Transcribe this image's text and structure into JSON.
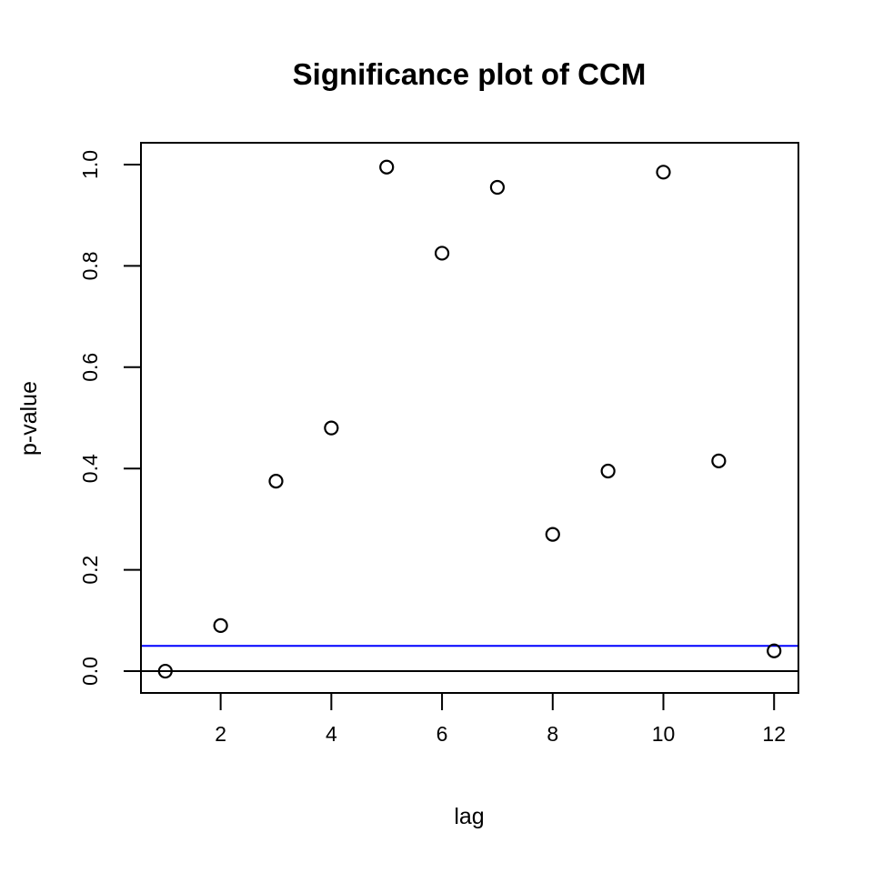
{
  "title": "Significance plot of CCM",
  "chart_data": {
    "type": "scatter",
    "title": "Significance plot of CCM",
    "xlabel": "lag",
    "ylabel": "p-value",
    "marker": "open-circle",
    "point_color": "#000000",
    "grid": false,
    "legend": null,
    "xlim": [
      0.56,
      12.44
    ],
    "ylim": [
      -0.043,
      1.043
    ],
    "xticks": [
      {
        "value": 2,
        "label": "2"
      },
      {
        "value": 4,
        "label": "4"
      },
      {
        "value": 6,
        "label": "6"
      },
      {
        "value": 8,
        "label": "8"
      },
      {
        "value": 10,
        "label": "10"
      },
      {
        "value": 12,
        "label": "12"
      }
    ],
    "yticks": [
      {
        "value": 0.0,
        "label": "0.0"
      },
      {
        "value": 0.2,
        "label": "0.2"
      },
      {
        "value": 0.4,
        "label": "0.4"
      },
      {
        "value": 0.6,
        "label": "0.6"
      },
      {
        "value": 0.8,
        "label": "0.8"
      },
      {
        "value": 1.0,
        "label": "1.0"
      }
    ],
    "points": [
      {
        "lag": 1,
        "p": 0.0
      },
      {
        "lag": 2,
        "p": 0.09
      },
      {
        "lag": 3,
        "p": 0.375
      },
      {
        "lag": 4,
        "p": 0.48
      },
      {
        "lag": 5,
        "p": 0.995
      },
      {
        "lag": 6,
        "p": 0.825
      },
      {
        "lag": 7,
        "p": 0.955
      },
      {
        "lag": 8,
        "p": 0.27
      },
      {
        "lag": 9,
        "p": 0.395
      },
      {
        "lag": 10,
        "p": 0.985
      },
      {
        "lag": 11,
        "p": 0.415
      },
      {
        "lag": 12,
        "p": 0.04
      }
    ],
    "hlines": [
      {
        "y": 0.05,
        "color": "#0000ff",
        "name": "significance-threshold-line"
      },
      {
        "y": 0.0,
        "color": "#000000",
        "name": "zero-line"
      }
    ],
    "colors": {
      "foreground": "#000000",
      "background": "#ffffff",
      "threshold": "#0000ff"
    }
  }
}
